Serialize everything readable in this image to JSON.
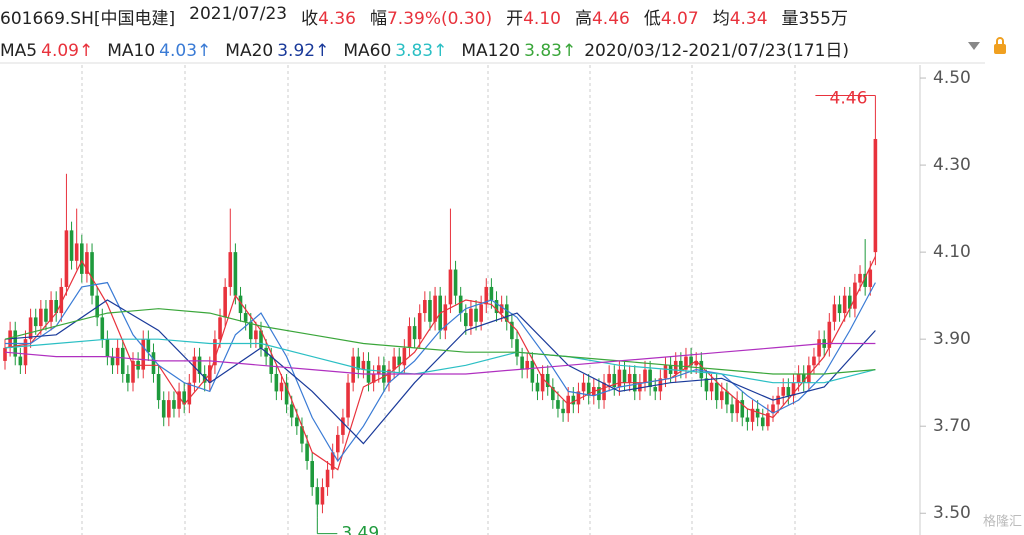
{
  "header": {
    "code": "601669.SH[中国电建]",
    "date": "2021/07/23",
    "items": [
      {
        "label": "收",
        "value": "4.36"
      },
      {
        "label": "幅",
        "value": "7.39%(0.30)"
      },
      {
        "label": "开",
        "value": "4.10"
      },
      {
        "label": "高",
        "value": "4.46"
      },
      {
        "label": "低",
        "value": "4.07"
      },
      {
        "label": "均",
        "value": "4.34"
      },
      {
        "label": "量",
        "value": "355万"
      }
    ],
    "range": "2020/03/12-2021/07/23(171日)"
  },
  "chart_data": {
    "type": "candlestick",
    "up_color": "#e8323c",
    "down_color": "#1e9a3c",
    "ylim": [
      3.45,
      4.53
    ],
    "yticks": [
      {
        "value": 3.5,
        "label": "3.50"
      },
      {
        "value": 3.7,
        "label": "3.70"
      },
      {
        "value": 3.9,
        "label": "3.90"
      },
      {
        "value": 4.1,
        "label": "4.10"
      },
      {
        "value": 4.3,
        "label": "4.30"
      },
      {
        "value": 4.5,
        "label": "4.50"
      }
    ],
    "open": [
      3.85,
      3.88,
      3.92,
      3.86,
      3.84,
      3.9,
      3.95,
      3.93,
      3.97,
      3.94,
      3.99,
      3.96,
      4.02,
      4.15,
      4.08,
      4.12,
      4.05,
      4.1,
      4.0,
      3.95,
      3.9,
      3.86,
      3.84,
      3.88,
      3.82,
      3.8,
      3.85,
      3.83,
      3.9,
      3.87,
      3.82,
      3.76,
      3.72,
      3.76,
      3.74,
      3.78,
      3.75,
      3.8,
      3.86,
      3.82,
      3.8,
      3.84,
      3.9,
      3.95,
      4.02,
      4.1,
      4.0,
      3.96,
      3.94,
      3.9,
      3.92,
      3.88,
      3.86,
      3.82,
      3.78,
      3.8,
      3.75,
      3.72,
      3.7,
      3.66,
      3.62,
      3.56,
      3.52,
      3.56,
      3.6,
      3.64,
      3.68,
      3.72,
      3.8,
      3.86,
      3.83,
      3.85,
      3.8,
      3.82,
      3.84,
      3.8,
      3.83,
      3.86,
      3.84,
      3.88,
      3.93,
      3.9,
      3.96,
      3.99,
      3.94,
      4.0,
      3.92,
      3.98,
      4.06,
      4.0,
      3.96,
      3.93,
      3.97,
      3.94,
      3.98,
      4.02,
      3.99,
      3.96,
      3.98,
      3.94,
      3.9,
      3.86,
      3.83,
      3.85,
      3.8,
      3.78,
      3.82,
      3.79,
      3.76,
      3.74,
      3.73,
      3.77,
      3.75,
      3.78,
      3.8,
      3.77,
      3.79,
      3.76,
      3.8,
      3.82,
      3.79,
      3.83,
      3.8,
      3.82,
      3.78,
      3.8,
      3.83,
      3.79,
      3.78,
      3.81,
      3.84,
      3.82,
      3.85,
      3.83,
      3.86,
      3.84,
      3.85,
      3.81,
      3.78,
      3.8,
      3.76,
      3.78,
      3.75,
      3.73,
      3.76,
      3.72,
      3.71,
      3.74,
      3.72,
      3.7,
      3.73,
      3.75,
      3.77,
      3.79,
      3.77,
      3.8,
      3.82,
      3.8,
      3.84,
      3.86,
      3.9,
      3.88,
      3.94,
      3.98,
      3.96,
      4.0,
      3.97,
      4.03,
      4.05,
      4.02,
      4.1
    ],
    "high": [
      3.9,
      3.94,
      3.94,
      3.88,
      3.92,
      3.97,
      3.97,
      3.99,
      3.99,
      4.01,
      4.01,
      4.04,
      4.28,
      4.17,
      4.2,
      4.14,
      4.12,
      4.12,
      4.02,
      3.97,
      3.92,
      3.88,
      3.9,
      3.9,
      3.84,
      3.87,
      3.87,
      3.92,
      3.92,
      3.89,
      3.84,
      3.78,
      3.78,
      3.78,
      3.8,
      3.8,
      3.82,
      3.88,
      3.88,
      3.84,
      3.86,
      3.92,
      3.97,
      4.04,
      4.2,
      4.12,
      4.02,
      3.98,
      3.96,
      3.94,
      3.94,
      3.9,
      3.88,
      3.84,
      3.82,
      3.82,
      3.77,
      3.74,
      3.72,
      3.68,
      3.64,
      3.58,
      3.58,
      3.62,
      3.66,
      3.7,
      3.74,
      3.82,
      3.88,
      3.88,
      3.87,
      3.87,
      3.84,
      3.86,
      3.86,
      3.85,
      3.88,
      3.88,
      3.9,
      3.95,
      3.95,
      3.98,
      4.01,
      4.01,
      4.02,
      4.02,
      4.0,
      4.2,
      4.08,
      4.02,
      3.98,
      3.99,
      3.99,
      4.0,
      4.04,
      4.04,
      4.01,
      4.0,
      4.0,
      3.96,
      3.92,
      3.88,
      3.87,
      3.87,
      3.82,
      3.84,
      3.84,
      3.81,
      3.78,
      3.76,
      3.79,
      3.79,
      3.8,
      3.82,
      3.82,
      3.81,
      3.81,
      3.82,
      3.84,
      3.84,
      3.85,
      3.85,
      3.84,
      3.84,
      3.82,
      3.85,
      3.85,
      3.81,
      3.83,
      3.86,
      3.86,
      3.87,
      3.87,
      3.88,
      3.88,
      3.87,
      3.87,
      3.83,
      3.82,
      3.82,
      3.8,
      3.8,
      3.77,
      3.78,
      3.78,
      3.74,
      3.76,
      3.76,
      3.74,
      3.75,
      3.77,
      3.79,
      3.81,
      3.81,
      3.82,
      3.84,
      3.84,
      3.86,
      3.88,
      3.92,
      3.92,
      3.96,
      4.0,
      4.0,
      4.02,
      4.02,
      4.05,
      4.07,
      4.13,
      4.08,
      4.46
    ],
    "low": [
      3.83,
      3.86,
      3.84,
      3.82,
      3.82,
      3.88,
      3.91,
      3.91,
      3.92,
      3.92,
      3.94,
      3.94,
      4.0,
      4.06,
      4.06,
      4.03,
      4.03,
      3.98,
      3.93,
      3.88,
      3.84,
      3.82,
      3.82,
      3.8,
      3.78,
      3.78,
      3.81,
      3.81,
      3.85,
      3.8,
      3.74,
      3.7,
      3.7,
      3.72,
      3.72,
      3.73,
      3.73,
      3.78,
      3.8,
      3.78,
      3.78,
      3.82,
      3.88,
      3.93,
      4.0,
      3.98,
      3.94,
      3.92,
      3.88,
      3.88,
      3.86,
      3.84,
      3.8,
      3.76,
      3.76,
      3.73,
      3.7,
      3.68,
      3.64,
      3.6,
      3.54,
      3.49,
      3.5,
      3.54,
      3.58,
      3.62,
      3.66,
      3.7,
      3.78,
      3.81,
      3.81,
      3.78,
      3.78,
      3.8,
      3.78,
      3.78,
      3.81,
      3.82,
      3.82,
      3.86,
      3.88,
      3.88,
      3.94,
      3.92,
      3.92,
      3.9,
      3.9,
      3.96,
      3.98,
      3.94,
      3.91,
      3.91,
      3.92,
      3.92,
      3.96,
      3.97,
      3.94,
      3.94,
      3.92,
      3.88,
      3.84,
      3.81,
      3.81,
      3.78,
      3.76,
      3.76,
      3.77,
      3.74,
      3.72,
      3.71,
      3.71,
      3.73,
      3.73,
      3.76,
      3.75,
      3.75,
      3.74,
      3.74,
      3.78,
      3.77,
      3.77,
      3.78,
      3.78,
      3.76,
      3.76,
      3.78,
      3.77,
      3.76,
      3.76,
      3.79,
      3.8,
      3.8,
      3.81,
      3.81,
      3.82,
      3.82,
      3.79,
      3.76,
      3.76,
      3.74,
      3.74,
      3.73,
      3.71,
      3.71,
      3.7,
      3.69,
      3.69,
      3.7,
      3.69,
      3.69,
      3.71,
      3.73,
      3.75,
      3.75,
      3.75,
      3.78,
      3.78,
      3.78,
      3.82,
      3.84,
      3.86,
      3.86,
      3.92,
      3.94,
      3.94,
      3.95,
      3.95,
      4.01,
      4.0,
      4.0,
      4.07
    ],
    "close": [
      3.88,
      3.92,
      3.86,
      3.84,
      3.9,
      3.95,
      3.93,
      3.97,
      3.94,
      3.99,
      3.96,
      4.02,
      4.15,
      4.08,
      4.12,
      4.05,
      4.1,
      4.0,
      3.95,
      3.9,
      3.86,
      3.84,
      3.88,
      3.82,
      3.8,
      3.85,
      3.83,
      3.9,
      3.87,
      3.82,
      3.76,
      3.72,
      3.76,
      3.74,
      3.78,
      3.75,
      3.8,
      3.86,
      3.82,
      3.8,
      3.84,
      3.9,
      3.95,
      4.02,
      4.1,
      4.0,
      3.96,
      3.94,
      3.9,
      3.92,
      3.88,
      3.86,
      3.82,
      3.78,
      3.8,
      3.75,
      3.72,
      3.7,
      3.66,
      3.62,
      3.56,
      3.52,
      3.56,
      3.6,
      3.64,
      3.68,
      3.72,
      3.8,
      3.86,
      3.83,
      3.85,
      3.8,
      3.82,
      3.84,
      3.8,
      3.83,
      3.86,
      3.84,
      3.88,
      3.93,
      3.9,
      3.96,
      3.99,
      3.94,
      4.0,
      3.92,
      3.98,
      4.06,
      4.0,
      3.96,
      3.93,
      3.97,
      3.94,
      3.98,
      4.02,
      3.99,
      3.96,
      3.98,
      3.94,
      3.9,
      3.86,
      3.83,
      3.85,
      3.8,
      3.78,
      3.82,
      3.79,
      3.76,
      3.74,
      3.73,
      3.77,
      3.75,
      3.78,
      3.8,
      3.77,
      3.79,
      3.76,
      3.8,
      3.82,
      3.79,
      3.83,
      3.8,
      3.82,
      3.78,
      3.8,
      3.83,
      3.79,
      3.78,
      3.81,
      3.84,
      3.82,
      3.85,
      3.83,
      3.86,
      3.84,
      3.85,
      3.81,
      3.78,
      3.8,
      3.76,
      3.78,
      3.75,
      3.73,
      3.76,
      3.72,
      3.71,
      3.74,
      3.72,
      3.7,
      3.73,
      3.75,
      3.77,
      3.79,
      3.77,
      3.8,
      3.82,
      3.8,
      3.84,
      3.86,
      3.9,
      3.88,
      3.94,
      3.98,
      3.96,
      4.0,
      3.97,
      4.03,
      4.05,
      4.02,
      4.06,
      4.36
    ],
    "series": [
      {
        "name": "MA5",
        "value_label": "4.09↑",
        "color": "#e8323c",
        "x": [
          0,
          5,
          10,
          15,
          20,
          25,
          30,
          35,
          40,
          45,
          50,
          55,
          60,
          65,
          70,
          75,
          80,
          85,
          90,
          95,
          100,
          105,
          110,
          115,
          120,
          125,
          130,
          135,
          140,
          145,
          150,
          155,
          160,
          165,
          170
        ],
        "values": [
          3.88,
          3.89,
          3.96,
          4.08,
          3.98,
          3.84,
          3.84,
          3.75,
          3.82,
          4.0,
          3.92,
          3.79,
          3.64,
          3.6,
          3.79,
          3.82,
          3.87,
          3.96,
          3.99,
          3.98,
          3.92,
          3.81,
          3.75,
          3.78,
          3.8,
          3.8,
          3.81,
          3.85,
          3.79,
          3.74,
          3.72,
          3.79,
          3.86,
          3.97,
          4.09
        ]
      },
      {
        "name": "MA10",
        "value_label": "4.03↑",
        "color": "#3a7bd5",
        "x": [
          0,
          5,
          10,
          15,
          20,
          25,
          30,
          35,
          40,
          45,
          50,
          55,
          60,
          65,
          70,
          75,
          80,
          85,
          90,
          95,
          100,
          105,
          110,
          115,
          120,
          125,
          130,
          135,
          140,
          145,
          150,
          155,
          160,
          165,
          170
        ],
        "values": [
          3.89,
          3.89,
          3.93,
          4.02,
          4.03,
          3.91,
          3.84,
          3.8,
          3.78,
          3.91,
          3.96,
          3.86,
          3.72,
          3.62,
          3.7,
          3.8,
          3.85,
          3.92,
          3.97,
          3.99,
          3.95,
          3.87,
          3.78,
          3.77,
          3.79,
          3.8,
          3.81,
          3.83,
          3.82,
          3.77,
          3.73,
          3.76,
          3.82,
          3.92,
          4.03
        ]
      },
      {
        "name": "MA20",
        "value_label": "3.92↑",
        "color": "#1a3a9a",
        "x": [
          0,
          10,
          20,
          30,
          40,
          50,
          60,
          70,
          80,
          90,
          100,
          110,
          120,
          130,
          140,
          150,
          160,
          170
        ],
        "values": [
          3.9,
          3.91,
          3.99,
          3.92,
          3.8,
          3.88,
          3.78,
          3.66,
          3.8,
          3.92,
          3.96,
          3.84,
          3.78,
          3.8,
          3.81,
          3.76,
          3.79,
          3.92
        ]
      },
      {
        "name": "MA60",
        "value_label": "3.83↑",
        "color": "#2bbfc4",
        "x": [
          0,
          10,
          20,
          30,
          40,
          50,
          60,
          70,
          80,
          90,
          100,
          110,
          120,
          130,
          140,
          150,
          160,
          170
        ],
        "values": [
          3.88,
          3.89,
          3.9,
          3.9,
          3.89,
          3.89,
          3.86,
          3.83,
          3.82,
          3.84,
          3.87,
          3.86,
          3.84,
          3.83,
          3.82,
          3.8,
          3.8,
          3.83
        ]
      },
      {
        "name": "MA120",
        "value_label": "3.83↑",
        "color": "#3aa63a",
        "x": [
          0,
          10,
          20,
          30,
          40,
          50,
          60,
          70,
          80,
          90,
          100,
          110,
          120,
          130,
          140,
          150,
          160,
          170
        ],
        "values": [
          3.9,
          3.93,
          3.96,
          3.97,
          3.96,
          3.93,
          3.91,
          3.89,
          3.88,
          3.87,
          3.87,
          3.86,
          3.85,
          3.84,
          3.83,
          3.82,
          3.82,
          3.83
        ]
      },
      {
        "color": "#b030c0",
        "x": [
          0,
          10,
          20,
          30,
          40,
          50,
          60,
          70,
          80,
          90,
          100,
          110,
          120,
          130,
          140,
          150,
          160,
          170
        ],
        "values": [
          3.87,
          3.86,
          3.86,
          3.85,
          3.85,
          3.84,
          3.83,
          3.82,
          3.82,
          3.82,
          3.83,
          3.84,
          3.85,
          3.86,
          3.87,
          3.88,
          3.89,
          3.89
        ]
      }
    ],
    "annotations": [
      {
        "text": "4.46",
        "index": 170
      },
      {
        "text": "3.49",
        "index": 61
      }
    ]
  }
}
